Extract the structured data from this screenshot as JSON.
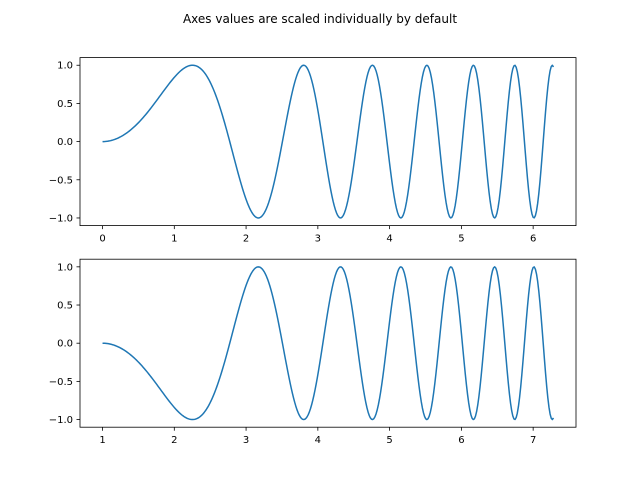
{
  "figure": {
    "suptitle": "Axes values are scaled individually by default",
    "line_color": "#1f77b4"
  },
  "chart_data": [
    {
      "type": "line",
      "position": "top",
      "series": [
        {
          "expression": "sin(x^2)",
          "x_range": [
            0,
            6.283185
          ],
          "n_points": 400,
          "x_offset": 0,
          "y_sign": 1
        }
      ],
      "xlim": [
        -0.314,
        6.597
      ],
      "ylim": [
        -1.1,
        1.1
      ],
      "xticks": [
        0,
        1,
        2,
        3,
        4,
        5,
        6
      ],
      "xtick_labels": [
        "0",
        "1",
        "2",
        "3",
        "4",
        "5",
        "6"
      ],
      "yticks": [
        -1.0,
        -0.5,
        0.0,
        0.5,
        1.0
      ],
      "ytick_labels": [
        "−1.0",
        "−0.5",
        "0.0",
        "0.5",
        "1.0"
      ],
      "grid": false
    },
    {
      "type": "line",
      "position": "bottom",
      "series": [
        {
          "expression": "-sin((x-1)^2)",
          "x_range": [
            1,
            7.283185
          ],
          "n_points": 400,
          "x_offset": 1,
          "y_sign": -1
        }
      ],
      "xlim": [
        0.686,
        7.597
      ],
      "ylim": [
        -1.1,
        1.1
      ],
      "xticks": [
        1,
        2,
        3,
        4,
        5,
        6,
        7
      ],
      "xtick_labels": [
        "1",
        "2",
        "3",
        "4",
        "5",
        "6",
        "7"
      ],
      "yticks": [
        -1.0,
        -0.5,
        0.0,
        0.5,
        1.0
      ],
      "ytick_labels": [
        "−1.0",
        "−0.5",
        "0.0",
        "0.5",
        "1.0"
      ],
      "grid": false
    }
  ]
}
